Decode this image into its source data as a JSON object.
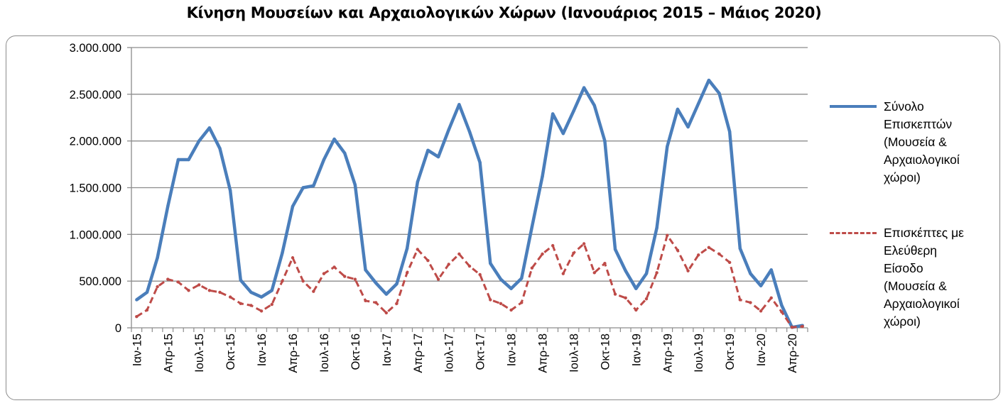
{
  "chart_data": {
    "type": "line",
    "title": "Κίνηση Μουσείων και Αρχαιολογικών Χώρων (Ιανουάριος 2015 – Μάιος 2020)",
    "xlabel": "",
    "ylabel": "",
    "ylim": [
      0,
      3000000
    ],
    "y_ticks": [
      0,
      500000,
      1000000,
      1500000,
      2000000,
      2500000,
      3000000
    ],
    "y_tick_labels": [
      "0",
      "500.000",
      "1.000.000",
      "1.500.000",
      "2.000.000",
      "2.500.000",
      "3.000.000"
    ],
    "x_tick_every": 3,
    "x_tick_labels": [
      "Ιαν-15",
      "Απρ-15",
      "Ιουλ-15",
      "Οκτ-15",
      "Ιαν-16",
      "Απρ-16",
      "Ιουλ-16",
      "Οκτ-16",
      "Ιαν-17",
      "Απρ-17",
      "Ιουλ-17",
      "Οκτ-17",
      "Ιαν-18",
      "Απρ-18",
      "Ιουλ-18",
      "Οκτ-18",
      "Ιαν-19",
      "Απρ-19",
      "Ιουλ-19",
      "Οκτ-19",
      "Ιαν-20",
      "Απρ-20"
    ],
    "grid": true,
    "legend_position": "right",
    "series": [
      {
        "name": "Σύνολο Επισκεπτών (Μουσεία & Αρχαιολογικοί χώροι)",
        "color": "#4a7ebb",
        "style": "solid",
        "values": [
          300000,
          380000,
          750000,
          1300000,
          1800000,
          1800000,
          2000000,
          2140000,
          1920000,
          1470000,
          510000,
          380000,
          330000,
          400000,
          800000,
          1300000,
          1500000,
          1520000,
          1800000,
          2020000,
          1870000,
          1530000,
          620000,
          480000,
          360000,
          470000,
          850000,
          1560000,
          1900000,
          1830000,
          2120000,
          2390000,
          2100000,
          1770000,
          690000,
          520000,
          420000,
          530000,
          1080000,
          1620000,
          2290000,
          2080000,
          2320000,
          2570000,
          2380000,
          2000000,
          840000,
          610000,
          420000,
          580000,
          1070000,
          1940000,
          2340000,
          2150000,
          2400000,
          2650000,
          2510000,
          2100000,
          850000,
          580000,
          450000,
          620000,
          240000,
          5000,
          25000
        ]
      },
      {
        "name": "Επισκέπτες με Ελεύθερη Είσοδο (Μουσεία & Αρχαιολογικοί χώροι)",
        "color": "#be4b48",
        "style": "dashed",
        "values": [
          120000,
          190000,
          440000,
          520000,
          490000,
          400000,
          460000,
          400000,
          380000,
          330000,
          260000,
          240000,
          180000,
          250000,
          500000,
          750000,
          500000,
          390000,
          580000,
          650000,
          550000,
          520000,
          290000,
          270000,
          160000,
          260000,
          590000,
          840000,
          720000,
          520000,
          680000,
          790000,
          660000,
          570000,
          300000,
          260000,
          190000,
          270000,
          640000,
          790000,
          880000,
          580000,
          800000,
          900000,
          590000,
          690000,
          360000,
          320000,
          190000,
          310000,
          590000,
          990000,
          830000,
          610000,
          780000,
          860000,
          790000,
          700000,
          300000,
          270000,
          180000,
          320000,
          170000,
          5000,
          15000
        ]
      }
    ],
    "legend": [
      {
        "label": "Σύνολο\nΕπισκεπτών\n(Μουσεία &\nΑρχαιολογικοί\nχώροι)"
      },
      {
        "label": "Επισκέπτες με\nΕλεύθερη\nΕίσοδο\n(Μουσεία &\nΑρχαιολογικοί\nχώροι)"
      }
    ]
  }
}
